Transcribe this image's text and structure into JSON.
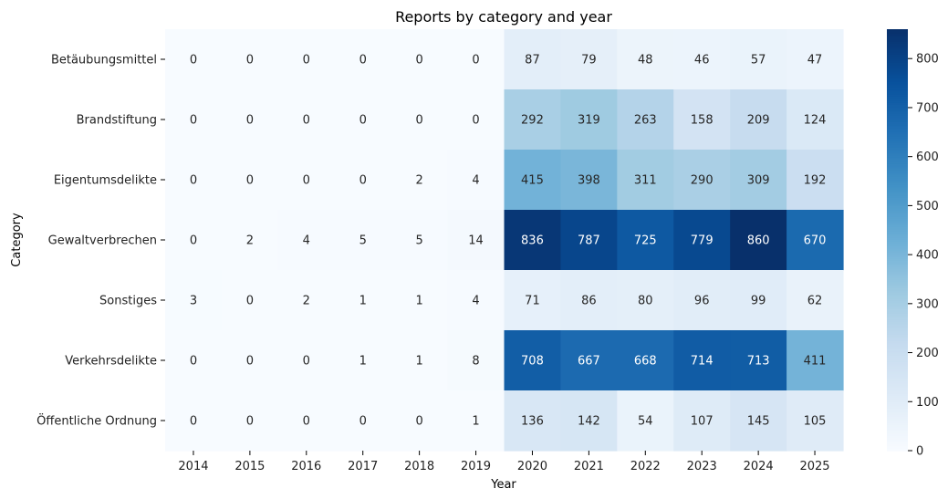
{
  "chart_data": {
    "type": "heatmap",
    "title": "Reports by category and year",
    "xlabel": "Year",
    "ylabel": "Category",
    "x": [
      "2014",
      "2015",
      "2016",
      "2017",
      "2018",
      "2019",
      "2020",
      "2021",
      "2022",
      "2023",
      "2024",
      "2025"
    ],
    "y": [
      "Betäubungsmittel",
      "Brandstiftung",
      "Eigentumsdelikte",
      "Gewaltverbrechen",
      "Sonstiges",
      "Verkehrsdelikte",
      "Öffentliche Ordnung"
    ],
    "values": [
      [
        0,
        0,
        0,
        0,
        0,
        0,
        87,
        79,
        48,
        46,
        57,
        47
      ],
      [
        0,
        0,
        0,
        0,
        0,
        0,
        292,
        319,
        263,
        158,
        209,
        124
      ],
      [
        0,
        0,
        0,
        0,
        2,
        4,
        415,
        398,
        311,
        290,
        309,
        192
      ],
      [
        0,
        2,
        4,
        5,
        5,
        14,
        836,
        787,
        725,
        779,
        860,
        670
      ],
      [
        3,
        0,
        2,
        1,
        1,
        4,
        71,
        86,
        80,
        96,
        99,
        62
      ],
      [
        0,
        0,
        0,
        1,
        1,
        8,
        708,
        667,
        668,
        714,
        713,
        411
      ],
      [
        0,
        0,
        0,
        0,
        0,
        1,
        136,
        142,
        54,
        107,
        145,
        105
      ]
    ],
    "colorbar": {
      "min": 0,
      "max": 860,
      "ticks": [
        0,
        100,
        200,
        300,
        400,
        500,
        600,
        700,
        800
      ],
      "colormap": "Blues"
    }
  }
}
